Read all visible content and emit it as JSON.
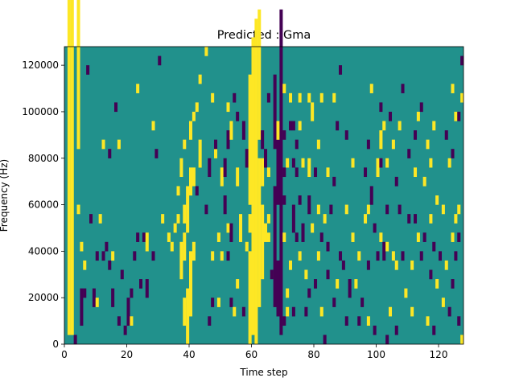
{
  "chart_data": {
    "type": "heatmap",
    "title": "Predicted : Gma",
    "xlabel": "Time step",
    "ylabel": "Frequency (Hz)",
    "xlim": [
      0,
      128
    ],
    "ylim": [
      0,
      128000
    ],
    "x_ticks": [
      0,
      20,
      40,
      60,
      80,
      100,
      120
    ],
    "y_ticks": [
      0,
      20000,
      40000,
      60000,
      80000,
      100000,
      120000
    ],
    "grid": false,
    "legend": "none",
    "colormap": "viridis",
    "levels": {
      "background": {
        "value": 0,
        "color": "#21918c"
      },
      "low": {
        "value": -1,
        "color": "#440154"
      },
      "high": {
        "value": 1,
        "color": "#fde725"
      }
    },
    "cells": [
      [
        1,
        1,
        40,
        42,
        40,
        -1
      ],
      [
        2,
        1,
        40,
        42,
        40,
        -1
      ],
      [
        3,
        0,
        1,
        -1
      ],
      [
        4,
        21,
        39,
        27,
        34,
        -1
      ],
      [
        4,
        14,
        1
      ],
      [
        5,
        2,
        4,
        -1
      ],
      [
        5,
        10,
        1
      ],
      [
        6,
        5,
        1,
        -1
      ],
      [
        6,
        8,
        1
      ],
      [
        7,
        29,
        1,
        -1
      ],
      [
        8,
        13,
        1,
        -1
      ],
      [
        9,
        4,
        2,
        -1
      ],
      [
        10,
        4,
        1
      ],
      [
        10,
        9,
        1,
        -1
      ],
      [
        11,
        13,
        1
      ],
      [
        12,
        9,
        1,
        -1
      ],
      [
        12,
        21,
        1
      ],
      [
        13,
        10,
        1,
        -1
      ],
      [
        14,
        8,
        1,
        -1
      ],
      [
        14,
        20,
        1,
        -1
      ],
      [
        15,
        4,
        2,
        -1
      ],
      [
        15,
        9,
        1
      ],
      [
        16,
        25,
        1,
        -1
      ],
      [
        17,
        2,
        1,
        -1
      ],
      [
        17,
        21,
        1
      ],
      [
        18,
        7,
        1,
        -1
      ],
      [
        19,
        1,
        1,
        -1
      ],
      [
        20,
        2,
        3,
        -1
      ],
      [
        21,
        5,
        1,
        -1
      ],
      [
        21,
        2,
        1
      ],
      [
        22,
        9,
        1,
        -1
      ],
      [
        23,
        11,
        1,
        -1
      ],
      [
        23,
        27,
        1
      ],
      [
        24,
        6,
        1,
        -1
      ],
      [
        25,
        11,
        1,
        -1
      ],
      [
        26,
        5,
        2,
        -1
      ],
      [
        26,
        10,
        2
      ],
      [
        28,
        9,
        1,
        -1
      ],
      [
        28,
        23,
        1
      ],
      [
        29,
        20,
        1,
        -1
      ],
      [
        30,
        30,
        1,
        -1
      ],
      [
        31,
        13,
        1
      ],
      [
        33,
        11,
        1
      ],
      [
        34,
        10,
        1
      ],
      [
        35,
        12,
        1
      ],
      [
        36,
        13,
        1
      ],
      [
        36,
        16,
        1
      ],
      [
        37,
        7,
        4
      ],
      [
        37,
        18,
        2
      ],
      [
        38,
        2,
        3
      ],
      [
        38,
        9,
        3
      ],
      [
        38,
        13,
        2
      ],
      [
        38,
        21,
        1
      ],
      [
        39,
        0,
        6
      ],
      [
        39,
        12,
        5
      ],
      [
        40,
        3,
        7
      ],
      [
        40,
        16,
        3
      ],
      [
        40,
        22,
        2
      ],
      [
        41,
        9,
        2
      ],
      [
        41,
        17,
        2
      ],
      [
        41,
        24,
        1
      ],
      [
        42,
        16,
        1,
        -1
      ],
      [
        42,
        25,
        1
      ],
      [
        43,
        19,
        3
      ],
      [
        43,
        28,
        1
      ],
      [
        45,
        14,
        1,
        -1
      ],
      [
        45,
        31,
        1
      ],
      [
        46,
        2,
        1,
        -1
      ],
      [
        46,
        18,
        2,
        -1
      ],
      [
        47,
        4,
        1,
        -1
      ],
      [
        47,
        9,
        1
      ],
      [
        47,
        26,
        1
      ],
      [
        48,
        20,
        1
      ],
      [
        48,
        21,
        1,
        -1
      ],
      [
        49,
        4,
        1
      ],
      [
        49,
        11,
        1
      ],
      [
        50,
        9,
        1
      ],
      [
        50,
        17,
        2
      ],
      [
        51,
        14,
        2,
        -1
      ],
      [
        51,
        18,
        2,
        -1
      ],
      [
        52,
        9,
        1,
        -1
      ],
      [
        52,
        12,
        1
      ],
      [
        52,
        21,
        2,
        -1
      ],
      [
        52,
        25,
        1
      ],
      [
        53,
        4,
        1,
        -1
      ],
      [
        53,
        11,
        2,
        -1
      ],
      [
        53,
        22,
        2
      ],
      [
        54,
        3,
        1
      ],
      [
        54,
        26,
        1,
        -1
      ],
      [
        55,
        6,
        1
      ],
      [
        55,
        17,
        2
      ],
      [
        55,
        24,
        1,
        -1
      ],
      [
        56,
        11,
        3
      ],
      [
        57,
        3,
        1,
        -1
      ],
      [
        57,
        22,
        2,
        -1
      ],
      [
        58,
        10,
        1
      ],
      [
        58,
        19,
        2,
        -1
      ],
      [
        59,
        0,
        10
      ],
      [
        59,
        12,
        2
      ],
      [
        59,
        15,
        14
      ],
      [
        60,
        1,
        32
      ],
      [
        61,
        0,
        35
      ],
      [
        62,
        4,
        16
      ],
      [
        62,
        22,
        14
      ],
      [
        63,
        7,
        8
      ],
      [
        63,
        17,
        3
      ],
      [
        63,
        21,
        2,
        -1
      ],
      [
        64,
        11,
        2
      ],
      [
        64,
        19,
        2,
        -1
      ],
      [
        65,
        11,
        1
      ],
      [
        65,
        13,
        1
      ],
      [
        65,
        26,
        1,
        -1
      ],
      [
        65,
        18,
        1
      ],
      [
        66,
        7,
        1,
        -1
      ],
      [
        67,
        4,
        13,
        -1
      ],
      [
        67,
        21,
        8,
        -1
      ],
      [
        68,
        3,
        6,
        -1
      ],
      [
        68,
        15,
        7,
        -1
      ],
      [
        68,
        22,
        2
      ],
      [
        69,
        1,
        35,
        -1
      ],
      [
        70,
        2,
        1,
        -1
      ],
      [
        70,
        11,
        1
      ],
      [
        70,
        15,
        1,
        -1
      ],
      [
        70,
        18,
        1,
        -1
      ],
      [
        70,
        22,
        1,
        -1
      ],
      [
        70,
        27,
        1
      ],
      [
        71,
        3,
        1
      ],
      [
        71,
        5,
        1
      ],
      [
        71,
        19,
        1
      ],
      [
        72,
        8,
        1
      ],
      [
        72,
        23,
        1,
        -1
      ],
      [
        72,
        26,
        1
      ],
      [
        73,
        23,
        1,
        -1
      ],
      [
        73,
        3,
        1,
        -1
      ],
      [
        73,
        12,
        3,
        -1
      ],
      [
        73,
        19,
        1,
        -1
      ],
      [
        74,
        11,
        1,
        -1
      ],
      [
        74,
        18,
        1,
        -1
      ],
      [
        74,
        21,
        1,
        -1
      ],
      [
        75,
        9,
        1
      ],
      [
        75,
        15,
        1,
        -1
      ],
      [
        75,
        23,
        1
      ],
      [
        75,
        26,
        1
      ],
      [
        76,
        11,
        2,
        -1
      ],
      [
        76,
        19,
        1
      ],
      [
        77,
        3,
        1,
        -1
      ],
      [
        77,
        7,
        1
      ],
      [
        78,
        5,
        1,
        -1
      ],
      [
        78,
        14,
        2,
        -1
      ],
      [
        78,
        18,
        2
      ],
      [
        78,
        26,
        1
      ],
      [
        79,
        12,
        1
      ],
      [
        79,
        24,
        2
      ],
      [
        80,
        6,
        1,
        -1
      ],
      [
        80,
        18,
        1,
        -1
      ],
      [
        81,
        9,
        1
      ],
      [
        81,
        14,
        1
      ],
      [
        81,
        21,
        1
      ],
      [
        82,
        3,
        1
      ],
      [
        82,
        11,
        1,
        -1
      ],
      [
        82,
        26,
        1
      ],
      [
        83,
        0,
        1,
        -1
      ],
      [
        83,
        13,
        1
      ],
      [
        84,
        7,
        1,
        -1
      ],
      [
        84,
        10,
        1,
        -1
      ],
      [
        84,
        18,
        1
      ],
      [
        85,
        14,
        1,
        -1
      ],
      [
        86,
        4,
        1,
        -1
      ],
      [
        86,
        17,
        1,
        -1
      ],
      [
        86,
        26,
        1
      ],
      [
        87,
        6,
        1
      ],
      [
        87,
        23,
        1,
        -1
      ],
      [
        88,
        9,
        1,
        -1
      ],
      [
        88,
        29,
        1,
        -1
      ],
      [
        89,
        8,
        1,
        -1
      ],
      [
        90,
        2,
        1,
        -1
      ],
      [
        90,
        14,
        1
      ],
      [
        90,
        22,
        1,
        -1
      ],
      [
        91,
        5,
        2,
        -1
      ],
      [
        92,
        11,
        1
      ],
      [
        92,
        19,
        1
      ],
      [
        93,
        6,
        1
      ],
      [
        94,
        2,
        1,
        -1
      ],
      [
        94,
        9,
        1
      ],
      [
        95,
        4,
        1,
        -1
      ],
      [
        96,
        13,
        1
      ],
      [
        96,
        18,
        1,
        -1
      ],
      [
        97,
        2,
        1
      ],
      [
        97,
        8,
        1,
        -1
      ],
      [
        97,
        14,
        1
      ],
      [
        97,
        21,
        1,
        -1
      ],
      [
        98,
        15,
        2,
        -1
      ],
      [
        98,
        27,
        1
      ],
      [
        99,
        1,
        1,
        -1
      ],
      [
        99,
        12,
        1,
        -1
      ],
      [
        100,
        9,
        1,
        -1
      ],
      [
        100,
        18,
        2
      ],
      [
        101,
        11,
        1
      ],
      [
        101,
        21,
        2
      ],
      [
        101,
        25,
        1,
        -1
      ],
      [
        101,
        19,
        1,
        -1
      ],
      [
        102,
        9,
        2,
        -1
      ],
      [
        102,
        23,
        1
      ],
      [
        103,
        0,
        1,
        -1
      ],
      [
        103,
        10,
        1
      ],
      [
        103,
        14,
        1,
        -1
      ],
      [
        103,
        19,
        1
      ],
      [
        104,
        3,
        1
      ],
      [
        104,
        24,
        1,
        -1
      ],
      [
        105,
        9,
        1
      ],
      [
        105,
        21,
        1
      ],
      [
        106,
        1,
        1,
        -1
      ],
      [
        106,
        8,
        1
      ],
      [
        106,
        17,
        1,
        -1
      ],
      [
        107,
        14,
        1,
        -1
      ],
      [
        107,
        23,
        1
      ],
      [
        108,
        9,
        1,
        -1
      ],
      [
        108,
        27,
        1,
        -1
      ],
      [
        109,
        5,
        1
      ],
      [
        110,
        13,
        1,
        -1
      ],
      [
        110,
        20,
        1,
        -1
      ],
      [
        111,
        3,
        1
      ],
      [
        111,
        8,
        1
      ],
      [
        112,
        13,
        1,
        -1
      ],
      [
        112,
        18,
        1
      ],
      [
        112,
        22,
        1,
        -1
      ],
      [
        113,
        11,
        1
      ],
      [
        113,
        24,
        1
      ],
      [
        114,
        9,
        1,
        -1
      ],
      [
        114,
        25,
        1,
        -1
      ],
      [
        115,
        11,
        1,
        -1
      ],
      [
        115,
        17,
        1
      ],
      [
        116,
        2,
        1
      ],
      [
        116,
        21,
        1
      ],
      [
        117,
        7,
        1,
        -1
      ],
      [
        117,
        13,
        1
      ],
      [
        117,
        19,
        1
      ],
      [
        118,
        1,
        1,
        -1
      ],
      [
        118,
        10,
        1,
        -1
      ],
      [
        118,
        23,
        1
      ],
      [
        119,
        6,
        1
      ],
      [
        119,
        15,
        1
      ],
      [
        120,
        9,
        1,
        -1
      ],
      [
        121,
        4,
        1
      ],
      [
        121,
        14,
        1
      ],
      [
        122,
        8,
        1
      ],
      [
        122,
        22,
        1,
        -1
      ],
      [
        123,
        3,
        1,
        -1
      ],
      [
        123,
        19,
        1
      ],
      [
        124,
        6,
        1,
        -1
      ],
      [
        124,
        11,
        1
      ],
      [
        124,
        20,
        1,
        -1
      ],
      [
        124,
        27,
        1
      ],
      [
        125,
        9,
        1,
        -1
      ],
      [
        125,
        13,
        1
      ],
      [
        125,
        24,
        1
      ],
      [
        126,
        2,
        1,
        -1
      ],
      [
        126,
        11,
        1,
        -1
      ],
      [
        126,
        14,
        1
      ],
      [
        126,
        24,
        1,
        -1
      ],
      [
        127,
        0,
        1
      ],
      [
        127,
        26,
        1
      ],
      [
        127,
        30,
        1,
        -1
      ]
    ]
  }
}
